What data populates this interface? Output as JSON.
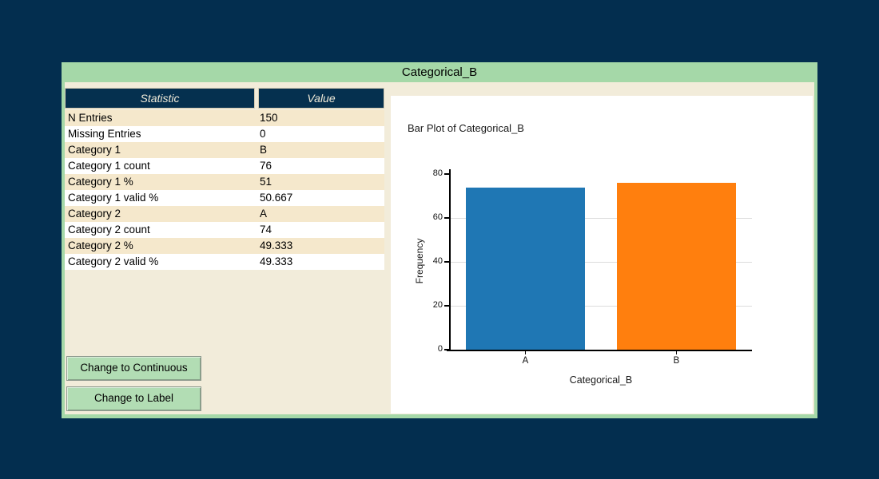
{
  "panel": {
    "title": "Categorical_B"
  },
  "table": {
    "headers": [
      "Statistic",
      "Value"
    ],
    "rows": [
      {
        "label": "N Entries",
        "value": "150"
      },
      {
        "label": "Missing Entries",
        "value": "0"
      },
      {
        "label": "Category 1",
        "value": "B"
      },
      {
        "label": "Category 1 count",
        "value": "76"
      },
      {
        "label": "Category 1 %",
        "value": "51"
      },
      {
        "label": "Category 1 valid %",
        "value": "50.667"
      },
      {
        "label": "Category 2",
        "value": "A"
      },
      {
        "label": "Category 2 count",
        "value": "74"
      },
      {
        "label": "Category 2 %",
        "value": "49.333"
      },
      {
        "label": "Category 2 valid %",
        "value": "49.333"
      }
    ]
  },
  "buttons": {
    "change_to_continuous": "Change to Continuous",
    "change_to_label": "Change to Label"
  },
  "chart_data": {
    "type": "bar",
    "title": "Bar Plot of Categorical_B",
    "xlabel": "Categorical_B",
    "ylabel": "Frequency",
    "categories": [
      "A",
      "B"
    ],
    "values": [
      74,
      76
    ],
    "colors": [
      "#1f77b4",
      "#ff7f0e"
    ],
    "ylim": [
      0,
      80
    ],
    "yticks": [
      0,
      20,
      40,
      60,
      80
    ],
    "gridlines_at": [
      20,
      40,
      60
    ],
    "grid": true,
    "legend": false
  },
  "colors": {
    "background_navy": "#032e4f",
    "panel_green": "#a5d8a8",
    "panel_beige": "#f2ecda",
    "row_stripe_tan": "#f5e8cc",
    "table_header_navy": "#05304f",
    "button_green": "#b2ddb4",
    "bar_blue": "#1f77b4",
    "bar_orange": "#ff7f0e"
  }
}
